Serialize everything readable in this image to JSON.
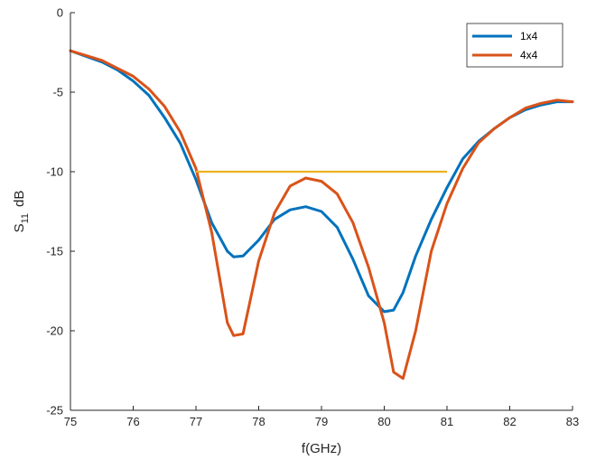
{
  "chart_data": {
    "type": "line",
    "xlabel": "f(GHz)",
    "ylabel_main": "S",
    "ylabel_sub": "11",
    "ylabel_unit": "dB",
    "xlim": [
      75,
      83
    ],
    "ylim": [
      -25,
      0
    ],
    "xticks": [
      "75",
      "76",
      "77",
      "78",
      "79",
      "80",
      "81",
      "82",
      "83"
    ],
    "yticks": [
      "0",
      "-5",
      "-10",
      "-15",
      "-20",
      "-25"
    ],
    "grid": false,
    "legend_position": "top-right",
    "series": [
      {
        "name": "1x4",
        "color": "#0072BD",
        "x": [
          75.0,
          75.5,
          75.75,
          76.0,
          76.25,
          76.5,
          76.75,
          77.0,
          77.25,
          77.5,
          77.6,
          77.75,
          78.0,
          78.25,
          78.5,
          78.75,
          79.0,
          79.25,
          79.5,
          79.75,
          80.0,
          80.15,
          80.3,
          80.5,
          80.75,
          81.0,
          81.25,
          81.5,
          81.75,
          82.0,
          82.25,
          82.5,
          82.75,
          83.0
        ],
        "y": [
          -2.4,
          -3.1,
          -3.6,
          -4.3,
          -5.2,
          -6.6,
          -8.2,
          -10.5,
          -13.2,
          -15.0,
          -15.35,
          -15.3,
          -14.3,
          -13.0,
          -12.4,
          -12.2,
          -12.5,
          -13.5,
          -15.5,
          -17.8,
          -18.8,
          -18.7,
          -17.6,
          -15.3,
          -13.0,
          -11.0,
          -9.2,
          -8.1,
          -7.3,
          -6.6,
          -6.1,
          -5.8,
          -5.6,
          -5.6
        ]
      },
      {
        "name": "4x4",
        "color": "#D95319",
        "x": [
          75.0,
          75.5,
          75.75,
          76.0,
          76.25,
          76.5,
          76.75,
          77.0,
          77.25,
          77.5,
          77.6,
          77.75,
          78.0,
          78.25,
          78.5,
          78.75,
          79.0,
          79.25,
          79.5,
          79.75,
          80.0,
          80.15,
          80.3,
          80.5,
          80.75,
          81.0,
          81.25,
          81.5,
          81.75,
          82.0,
          82.25,
          82.5,
          82.75,
          83.0
        ],
        "y": [
          -2.4,
          -3.0,
          -3.5,
          -4.0,
          -4.8,
          -5.9,
          -7.5,
          -9.8,
          -13.8,
          -19.5,
          -20.3,
          -20.2,
          -15.6,
          -12.6,
          -10.9,
          -10.4,
          -10.6,
          -11.4,
          -13.2,
          -16.0,
          -19.5,
          -22.6,
          -23.0,
          -20.0,
          -15.0,
          -12.0,
          -9.8,
          -8.2,
          -7.3,
          -6.6,
          -6.0,
          -5.7,
          -5.5,
          -5.6
        ]
      }
    ],
    "reference_line": {
      "x_start": 77,
      "x_end": 81,
      "y": -10,
      "color": "#EDB120"
    }
  }
}
